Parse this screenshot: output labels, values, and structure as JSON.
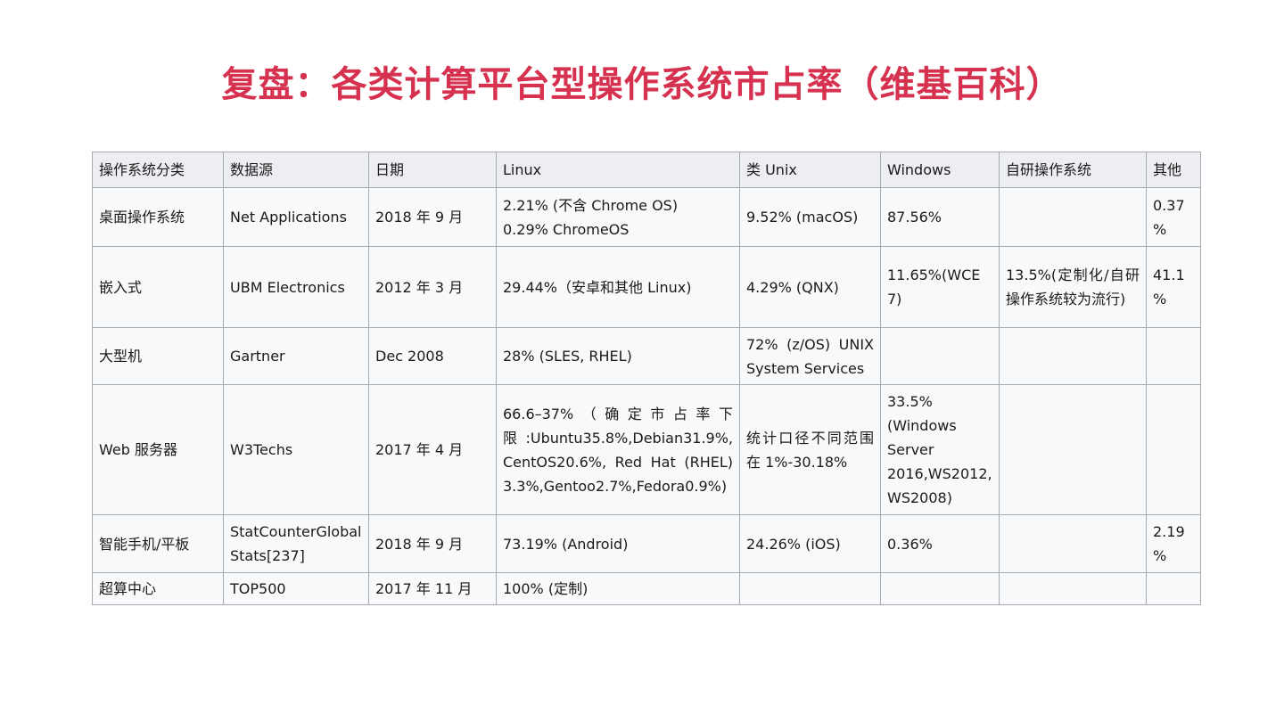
{
  "title": "复盘：各类计算平台型操作系统市占率（维基百科）",
  "table": {
    "headers": [
      "操作系统分类",
      "数据源",
      "日期",
      "Linux",
      "类 Unix",
      "Windows",
      "自研操作系统",
      "其他"
    ],
    "rows": [
      [
        "桌面操作系统",
        "Net Applications",
        "2018 年 9 月",
        "2.21% (不含  Chrome OS)\n0.29% ChromeOS",
        "9.52% (macOS)",
        "87.56%",
        "",
        "0.37%"
      ],
      [
        "嵌入式",
        "UBM Electronics",
        "2012 年 3 月",
        "29.44%（安卓和其他 Linux)",
        "4.29% (QNX)",
        "11.65%(WCE 7)",
        "13.5%(定制化/自研操作系统较为流行)",
        "41.1%"
      ],
      [
        "大型机",
        "Gartner",
        "Dec 2008",
        "28% (SLES, RHEL)",
        "72% (z/OS) UNIX System Services",
        "",
        "",
        ""
      ],
      [
        "Web 服务器",
        "W3Techs",
        "2017 年 4 月",
        "66.6–37%（确定市占率下限:Ubuntu35.8%,Debian31.9%,CentOS20.6%, Red Hat (RHEL) 3.3%,Gentoo2.7%,Fedora0.9%)",
        "统计口径不同范围在 1%-30.18%",
        "33.5%\n(Windows\nServer\n2016,WS2012,\nWS2008)",
        "",
        ""
      ],
      [
        "智能手机/平板",
        "StatCounterGlobal Stats[237]",
        "2018 年 9 月",
        "73.19% (Android)",
        "24.26% (iOS)",
        "0.36%",
        "",
        "2.19%"
      ],
      [
        "超算中心",
        "TOP500",
        "2017 年 11 月",
        "100% (定制)",
        "",
        "",
        "",
        ""
      ]
    ]
  }
}
